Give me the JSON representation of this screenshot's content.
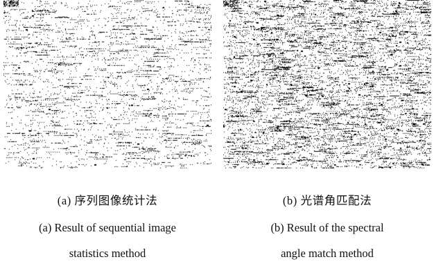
{
  "figure": {
    "panels": [
      {
        "id": "a",
        "caption_cn": "(a) 序列图像统计法",
        "caption_en_line1": "(a) Result of sequential image",
        "caption_en_line2": "statistics method",
        "pixel_color": "#000000"
      },
      {
        "id": "b",
        "caption_cn": "(b) 光谱角匹配法",
        "caption_en_line1": "(b) Result of the spectral",
        "caption_en_line2": "angle match method",
        "pixel_color": "#000000"
      }
    ]
  }
}
